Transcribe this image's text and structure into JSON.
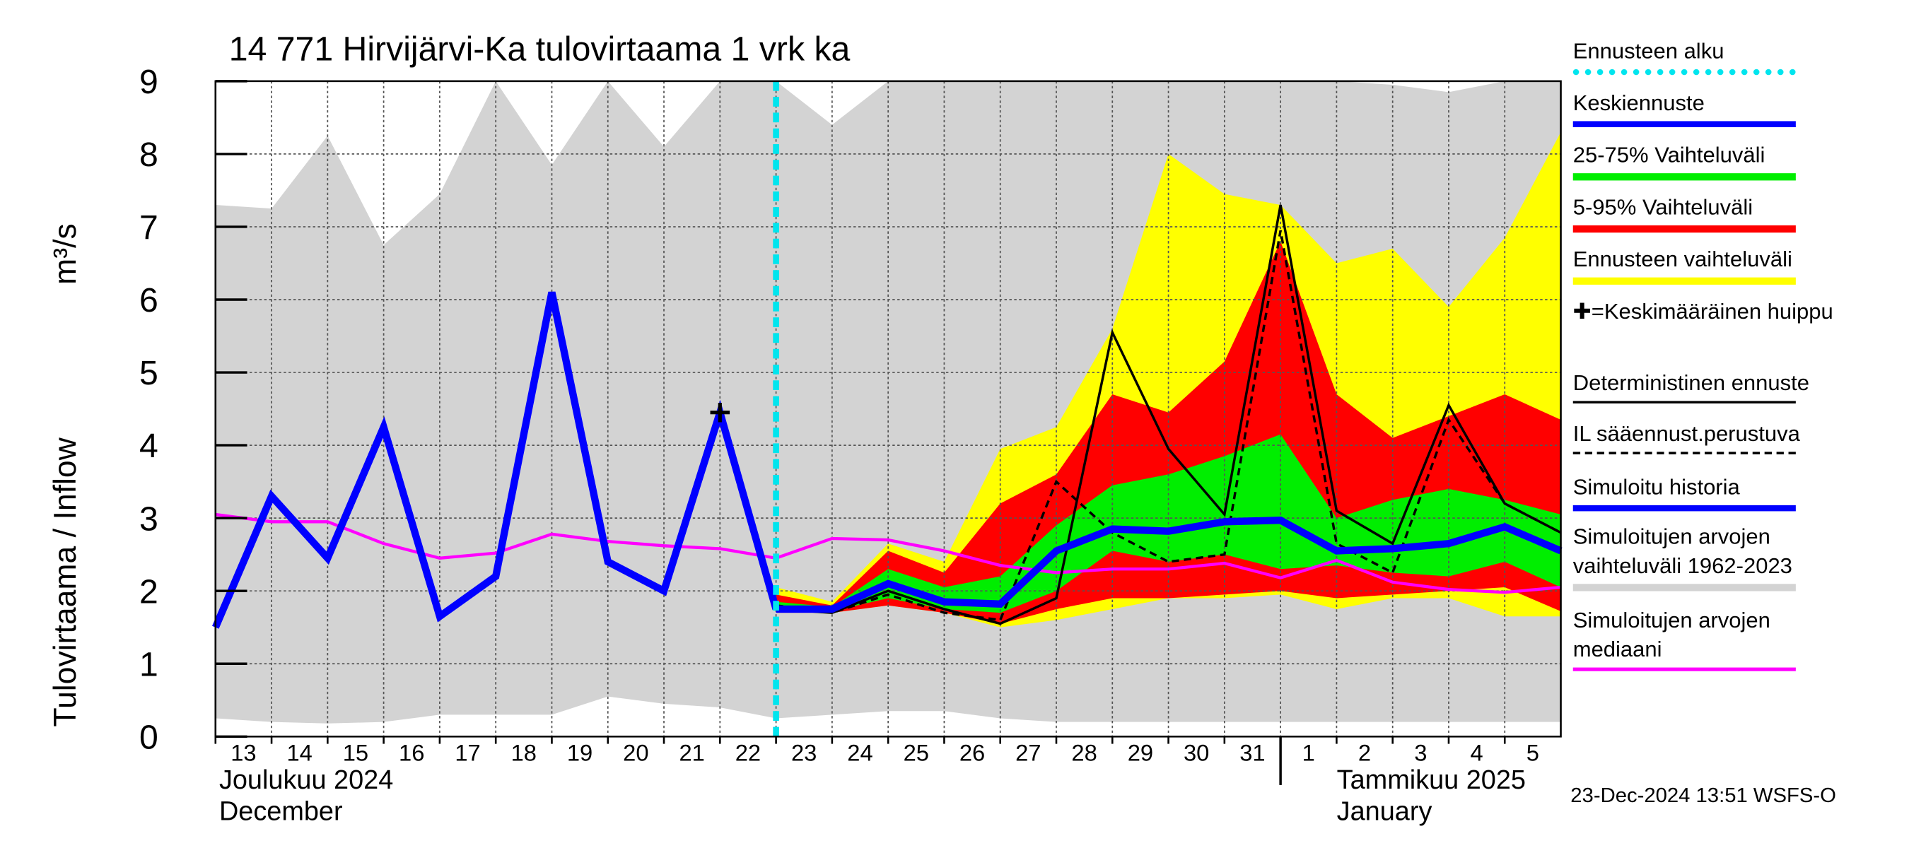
{
  "chart_data": {
    "type": "hydrograph",
    "title": "14 771 Hirvijärvi-Ka tulovirtaama 1 vrk ka",
    "y_label": "Tulovirtaama / Inflow",
    "y_unit": "m³/s",
    "month_labels": [
      "Joulukuu  2024",
      "December",
      "Tammikuu  2025",
      "January"
    ],
    "month_divider": 19,
    "timestamp": "23-Dec-2024 13:51 WSFS-O",
    "grid": true,
    "xlim": [
      0,
      24
    ],
    "xticks": [
      {
        "value": 0,
        "label": "13"
      },
      {
        "value": 1,
        "label": "14"
      },
      {
        "value": 2,
        "label": "15"
      },
      {
        "value": 3,
        "label": "16"
      },
      {
        "value": 4,
        "label": "17"
      },
      {
        "value": 5,
        "label": "18"
      },
      {
        "value": 6,
        "label": "19"
      },
      {
        "value": 7,
        "label": "20"
      },
      {
        "value": 8,
        "label": "21"
      },
      {
        "value": 9,
        "label": "22"
      },
      {
        "value": 10,
        "label": "23"
      },
      {
        "value": 11,
        "label": "24"
      },
      {
        "value": 12,
        "label": "25"
      },
      {
        "value": 13,
        "label": "26"
      },
      {
        "value": 14,
        "label": "27"
      },
      {
        "value": 15,
        "label": "28"
      },
      {
        "value": 16,
        "label": "29"
      },
      {
        "value": 17,
        "label": "30"
      },
      {
        "value": 18,
        "label": "31"
      },
      {
        "value": 19,
        "label": "1"
      },
      {
        "value": 20,
        "label": "2"
      },
      {
        "value": 21,
        "label": "3"
      },
      {
        "value": 22,
        "label": "4"
      },
      {
        "value": 23,
        "label": "5"
      }
    ],
    "ylim": [
      0,
      9
    ],
    "yticks": [
      0,
      1,
      2,
      3,
      4,
      5,
      6,
      7,
      8,
      9
    ],
    "x": [
      0,
      1,
      2,
      3,
      4,
      5,
      6,
      7,
      8,
      9,
      10,
      11,
      12,
      13,
      14,
      15,
      16,
      17,
      18,
      19,
      20,
      21,
      22,
      23,
      24
    ],
    "forecast_start": {
      "name": "Ennusteen alku",
      "x": 10,
      "color": "#00e5ee"
    },
    "peak": {
      "name": "✚=Keskimääräinen huippu",
      "x": 9,
      "value": 4.45
    },
    "bands": [
      {
        "name": "Simuloitujen arvojen vaihteluväli 1962-2023",
        "color": "#d3d3d3",
        "lower": [
          0.25,
          0.2,
          0.18,
          0.2,
          0.3,
          0.3,
          0.3,
          0.55,
          0.45,
          0.4,
          0.25,
          0.3,
          0.35,
          0.35,
          0.25,
          0.2,
          0.2,
          0.2,
          0.2,
          0.2,
          0.2,
          0.2,
          0.2,
          0.2,
          0.2
        ],
        "upper": [
          7.3,
          7.25,
          8.25,
          6.75,
          7.45,
          9,
          7.85,
          9,
          8.1,
          9,
          9,
          8.4,
          9,
          9,
          9,
          9,
          9,
          9,
          9,
          9,
          9,
          8.95,
          8.85,
          9,
          9
        ]
      },
      {
        "name": "Ennusteen vaihteluväli",
        "color": "#ffff00",
        "lower": [
          null,
          null,
          null,
          null,
          null,
          null,
          null,
          null,
          null,
          null,
          1.75,
          1.7,
          1.8,
          1.7,
          1.5,
          1.6,
          1.75,
          1.9,
          1.9,
          1.95,
          1.75,
          1.9,
          1.9,
          1.65,
          1.65
        ],
        "upper": [
          null,
          null,
          null,
          null,
          null,
          null,
          null,
          null,
          null,
          null,
          2.05,
          1.85,
          2.65,
          2.4,
          3.95,
          4.25,
          5.6,
          8.0,
          7.45,
          7.3,
          6.5,
          6.7,
          5.9,
          6.85,
          8.3
        ]
      },
      {
        "name": "5-95% Vaihteluväli",
        "color": "#ff0000",
        "lower": [
          null,
          null,
          null,
          null,
          null,
          null,
          null,
          null,
          null,
          null,
          1.7,
          1.7,
          1.8,
          1.7,
          1.55,
          1.75,
          1.9,
          1.9,
          1.95,
          2.0,
          1.9,
          1.95,
          2.0,
          2.05,
          1.72
        ],
        "upper": [
          null,
          null,
          null,
          null,
          null,
          null,
          null,
          null,
          null,
          null,
          1.95,
          1.8,
          2.55,
          2.25,
          3.2,
          3.6,
          4.7,
          4.45,
          5.15,
          6.8,
          4.7,
          4.1,
          4.4,
          4.7,
          4.35
        ]
      },
      {
        "name": "25-75% Vaihteluväli",
        "color": "#00ee00",
        "lower": [
          null,
          null,
          null,
          null,
          null,
          null,
          null,
          null,
          null,
          null,
          1.72,
          1.72,
          1.9,
          1.75,
          1.7,
          2.0,
          2.55,
          2.4,
          2.5,
          2.3,
          2.35,
          2.25,
          2.2,
          2.4,
          2.05
        ],
        "upper": [
          null,
          null,
          null,
          null,
          null,
          null,
          null,
          null,
          null,
          null,
          1.85,
          1.78,
          2.3,
          2.05,
          2.2,
          2.9,
          3.45,
          3.6,
          3.85,
          4.15,
          3.0,
          3.25,
          3.4,
          3.25,
          3.05
        ]
      }
    ],
    "series": [
      {
        "name": "Simuloitujen arvojen mediaani",
        "color": "#ff00ff",
        "linestyle": "solid",
        "values": [
          3.05,
          2.95,
          2.95,
          2.65,
          2.45,
          2.52,
          2.78,
          2.68,
          2.62,
          2.58,
          2.45,
          2.72,
          2.7,
          2.55,
          2.35,
          2.25,
          2.3,
          2.3,
          2.38,
          2.18,
          2.42,
          2.12,
          2.02,
          1.98,
          2.05
        ]
      },
      {
        "name": "IL sääennust.perustuva",
        "color": "#000000",
        "linestyle": "dashed",
        "values": [
          null,
          null,
          null,
          null,
          null,
          null,
          null,
          null,
          null,
          null,
          1.8,
          1.7,
          1.95,
          1.7,
          1.6,
          3.5,
          2.8,
          2.4,
          2.5,
          6.95,
          2.65,
          2.25,
          4.35,
          3.2,
          2.8
        ]
      },
      {
        "name": "Deterministinen ennuste",
        "color": "#000000",
        "linestyle": "solid",
        "values": [
          null,
          null,
          null,
          null,
          null,
          null,
          null,
          null,
          null,
          4.45,
          1.75,
          1.7,
          2.0,
          1.75,
          1.55,
          1.9,
          5.55,
          3.95,
          3.05,
          7.3,
          3.1,
          2.65,
          4.55,
          3.2,
          2.8
        ]
      },
      {
        "name": "Simuloitu historia",
        "color": "#0000ff",
        "linestyle": "solid",
        "values": [
          1.5,
          3.3,
          2.45,
          4.25,
          1.65,
          2.2,
          6.1,
          2.4,
          2.0,
          4.45,
          1.75,
          null,
          null,
          null,
          null,
          null,
          null,
          null,
          null,
          null,
          null,
          null,
          null,
          null,
          null
        ]
      },
      {
        "name": "Keskiennuste",
        "color": "#0000ff",
        "linestyle": "solid",
        "values": [
          null,
          null,
          null,
          null,
          null,
          null,
          null,
          null,
          null,
          null,
          1.75,
          1.75,
          2.1,
          1.85,
          1.82,
          2.55,
          2.85,
          2.82,
          2.95,
          2.97,
          2.55,
          2.58,
          2.65,
          2.88,
          2.55
        ]
      }
    ]
  }
}
